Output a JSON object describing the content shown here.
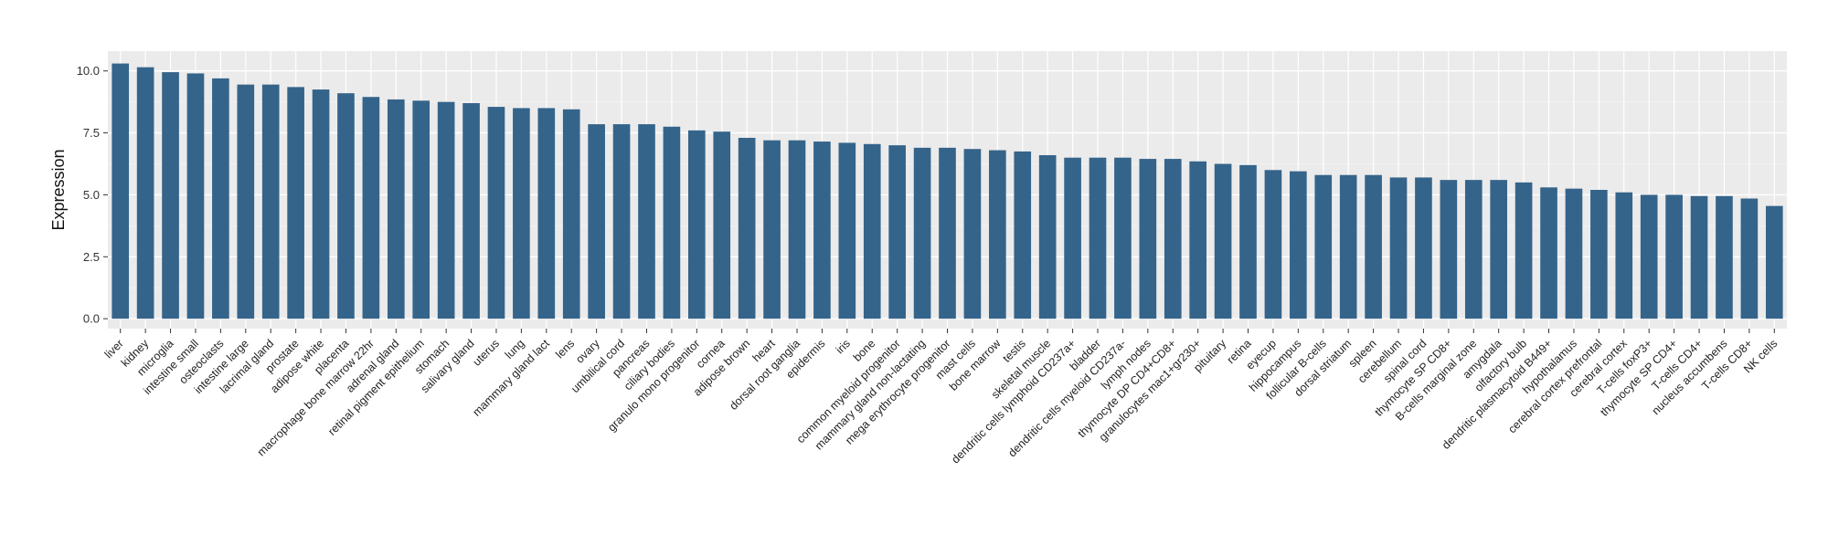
{
  "colors": {
    "bar": "#35648b",
    "panel": "#ebebeb",
    "grid_major": "#ffffff",
    "grid_minor": "#f5f5f5",
    "text": "#333333"
  },
  "chart_data": {
    "type": "bar",
    "title": "",
    "xlabel": "",
    "ylabel": "Expression",
    "ylim": [
      -0.4,
      10.8
    ],
    "yticks": [
      0.0,
      2.5,
      5.0,
      7.5,
      10.0
    ],
    "ytick_labels": [
      "0.0",
      "2.5",
      "5.0",
      "7.5",
      "10.0"
    ],
    "grid": true,
    "legend": "none",
    "categories": [
      "liver",
      "kidney",
      "microglia",
      "intestine small",
      "osteoclasts",
      "intestine large",
      "lacrimal gland",
      "prostate",
      "adipose white",
      "placenta",
      "macrophage bone marrow 22hr",
      "adrenal gland",
      "retinal pigment epithelium",
      "stomach",
      "salivary gland",
      "uterus",
      "lung",
      "mammary gland  lact",
      "lens",
      "ovary",
      "umbilical cord",
      "pancreas",
      "ciliary bodies",
      "granulo mono progenitor",
      "cornea",
      "adipose brown",
      "heart",
      "dorsal root ganglia",
      "epidermis",
      "iris",
      "bone",
      "common myeloid progenitor",
      "mammary gland non-lactating",
      "mega erythrocyte progenitor",
      "mast cells",
      "bone marrow",
      "testis",
      "skeletal muscle",
      "dendritic cells lymphoid CD237a+",
      "bladder",
      "dendritic cells myeloid CD237a-",
      "lymph nodes",
      "thymocyte DP CD4+CD8+",
      "granulocytes mac1+gr230+",
      "pituitary",
      "retina",
      "eyecup",
      "hippocampus",
      "follicular B-cells",
      "dorsal striatum",
      "spleen",
      "cerebellum",
      "spinal cord",
      "thymocyte SP CD8+",
      "B-cells marginal zone",
      "amygdala",
      "olfactory bulb",
      "dendritic plasmacytoid B449+",
      "hypothalamus",
      "cerebral cortex prefrontal",
      "cerebral cortex",
      "T-cells foxP3+",
      "thymocyte SP CD4+",
      "T-cells CD4+",
      "nucleus accumbens",
      "T-cells CD8+",
      "NK cells"
    ],
    "values": [
      10.3,
      10.15,
      9.95,
      9.9,
      9.7,
      9.45,
      9.45,
      9.35,
      9.25,
      9.1,
      8.95,
      8.85,
      8.8,
      8.75,
      8.7,
      8.55,
      8.5,
      8.5,
      8.45,
      7.85,
      7.85,
      7.85,
      7.75,
      7.6,
      7.55,
      7.3,
      7.2,
      7.2,
      7.15,
      7.1,
      7.05,
      7.0,
      6.9,
      6.9,
      6.85,
      6.8,
      6.75,
      6.6,
      6.5,
      6.5,
      6.5,
      6.45,
      6.45,
      6.35,
      6.25,
      6.2,
      6.0,
      5.95,
      5.8,
      5.8,
      5.8,
      5.7,
      5.7,
      5.6,
      5.6,
      5.6,
      5.5,
      5.3,
      5.25,
      5.2,
      5.1,
      5.0,
      5.0,
      4.95,
      4.95,
      4.85,
      4.55
    ]
  }
}
